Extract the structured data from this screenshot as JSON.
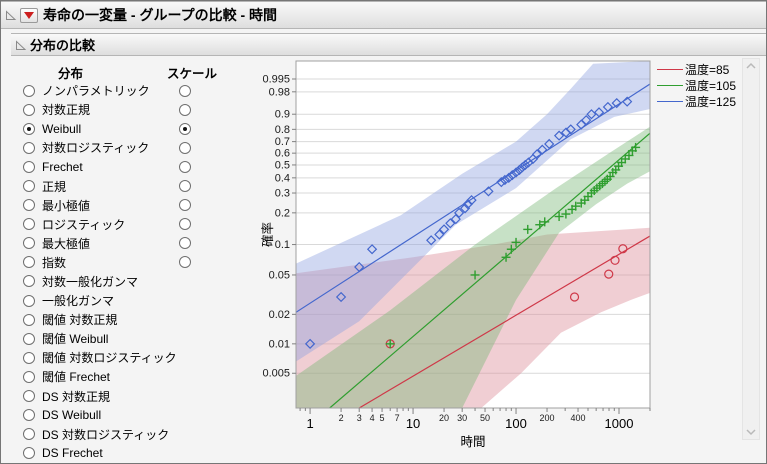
{
  "window": {
    "title": "寿命の一変量 - グループの比較 - 時間",
    "section_title": "分布の比較"
  },
  "panel": {
    "dist_header": "分布",
    "scale_header": "スケール",
    "items": [
      {
        "label": "ノンパラメトリック",
        "selected": false,
        "has_scale": true,
        "scale_selected": false
      },
      {
        "label": "対数正規",
        "selected": false,
        "has_scale": true,
        "scale_selected": false
      },
      {
        "label": "Weibull",
        "selected": true,
        "has_scale": true,
        "scale_selected": true
      },
      {
        "label": "対数ロジスティック",
        "selected": false,
        "has_scale": true,
        "scale_selected": false
      },
      {
        "label": "Frechet",
        "selected": false,
        "has_scale": true,
        "scale_selected": false
      },
      {
        "label": "正規",
        "selected": false,
        "has_scale": true,
        "scale_selected": false
      },
      {
        "label": "最小極値",
        "selected": false,
        "has_scale": true,
        "scale_selected": false
      },
      {
        "label": "ロジスティック",
        "selected": false,
        "has_scale": true,
        "scale_selected": false
      },
      {
        "label": "最大極値",
        "selected": false,
        "has_scale": true,
        "scale_selected": false
      },
      {
        "label": "指数",
        "selected": false,
        "has_scale": true,
        "scale_selected": false
      },
      {
        "label": "対数一般化ガンマ",
        "selected": false,
        "has_scale": false,
        "scale_selected": false
      },
      {
        "label": "一般化ガンマ",
        "selected": false,
        "has_scale": false,
        "scale_selected": false
      },
      {
        "label": "閾値 対数正規",
        "selected": false,
        "has_scale": false,
        "scale_selected": false
      },
      {
        "label": "閾値 Weibull",
        "selected": false,
        "has_scale": false,
        "scale_selected": false
      },
      {
        "label": "閾値 対数ロジスティック",
        "selected": false,
        "has_scale": false,
        "scale_selected": false
      },
      {
        "label": "閾値 Frechet",
        "selected": false,
        "has_scale": false,
        "scale_selected": false
      },
      {
        "label": "DS 対数正規",
        "selected": false,
        "has_scale": false,
        "scale_selected": false
      },
      {
        "label": "DS Weibull",
        "selected": false,
        "has_scale": false,
        "scale_selected": false
      },
      {
        "label": "DS 対数ロジスティック",
        "selected": false,
        "has_scale": false,
        "scale_selected": false
      },
      {
        "label": "DS Frechet",
        "selected": false,
        "has_scale": false,
        "scale_selected": false
      }
    ]
  },
  "chart_data": {
    "type": "scatter",
    "grid_color": "#d9d9d9",
    "band_opacity": 0.42,
    "x_axis": {
      "label": "時間",
      "scale": "log",
      "min": 0.73,
      "max": 2000,
      "major_ticks": [
        1,
        10,
        100,
        1000
      ],
      "minor_labeled": [
        2,
        3,
        4,
        5,
        7,
        20,
        30,
        50,
        200,
        400
      ],
      "minor_ticks": [
        0.8,
        0.9,
        6,
        8,
        9,
        40,
        60,
        70,
        80,
        90,
        300,
        500,
        600,
        700,
        800,
        900,
        2000
      ]
    },
    "y_axis": {
      "label": "確率",
      "scale": "weibull-probability",
      "ticks": [
        0.995,
        0.98,
        0.9,
        0.8,
        0.7,
        0.6,
        0.5,
        0.4,
        0.3,
        0.2,
        0.1,
        0.05,
        0.02,
        0.01,
        0.005
      ],
      "max_p": 0.9997,
      "min_p": 0.0022
    },
    "series": [
      {
        "name": "温度=85",
        "color": "#cf3848",
        "fill": "#dc8b97",
        "marker": "circle",
        "points": [
          [
            6,
            0.01
          ],
          [
            370,
            0.03
          ],
          [
            795,
            0.051
          ],
          [
            915,
            0.07
          ],
          [
            1090,
            0.091
          ]
        ],
        "line": [
          [
            3,
            0.0022
          ],
          [
            2000,
            0.121
          ]
        ],
        "band": [
          [
            0.73,
            0.052
          ],
          [
            10,
            0.075
          ],
          [
            60,
            0.1
          ],
          [
            200,
            0.125
          ],
          [
            2000,
            0.145
          ],
          [
            2000,
            0.033
          ],
          [
            1300,
            0.028
          ],
          [
            670,
            0.021
          ],
          [
            273,
            0.013
          ],
          [
            112,
            0.005
          ],
          [
            46,
            0.0022
          ],
          [
            0.73,
            0.0022
          ]
        ]
      },
      {
        "name": "温度=105",
        "color": "#2f9e2f",
        "fill": "#79b877",
        "marker": "plus",
        "points": [
          [
            6,
            0.01
          ],
          [
            40,
            0.05
          ],
          [
            80,
            0.075
          ],
          [
            90,
            0.09
          ],
          [
            100,
            0.105
          ],
          [
            130,
            0.14
          ],
          [
            170,
            0.155
          ],
          [
            190,
            0.165
          ],
          [
            262,
            0.185
          ],
          [
            305,
            0.195
          ],
          [
            350,
            0.215
          ],
          [
            380,
            0.23
          ],
          [
            430,
            0.245
          ],
          [
            465,
            0.26
          ],
          [
            500,
            0.28
          ],
          [
            540,
            0.3
          ],
          [
            575,
            0.315
          ],
          [
            610,
            0.33
          ],
          [
            650,
            0.345
          ],
          [
            690,
            0.36
          ],
          [
            730,
            0.375
          ],
          [
            770,
            0.39
          ],
          [
            820,
            0.41
          ],
          [
            870,
            0.44
          ],
          [
            930,
            0.46
          ],
          [
            990,
            0.49
          ],
          [
            1060,
            0.52
          ],
          [
            1150,
            0.55
          ],
          [
            1250,
            0.58
          ],
          [
            1350,
            0.62
          ],
          [
            1450,
            0.65
          ]
        ],
        "line": [
          [
            1.55,
            0.0022
          ],
          [
            2000,
            0.77
          ]
        ],
        "band": [
          [
            0.73,
            0.0047
          ],
          [
            6,
            0.022
          ],
          [
            40,
            0.1
          ],
          [
            245,
            0.33
          ],
          [
            800,
            0.6
          ],
          [
            2000,
            0.82
          ],
          [
            2000,
            0.45
          ],
          [
            1200,
            0.36
          ],
          [
            600,
            0.24
          ],
          [
            262,
            0.13
          ],
          [
            100,
            0.028
          ],
          [
            30,
            0.0022
          ],
          [
            0.73,
            0.0022
          ]
        ]
      },
      {
        "name": "温度=125",
        "color": "#4467cd",
        "fill": "#8fa3e0",
        "marker": "diamond",
        "points": [
          [
            1,
            0.01
          ],
          [
            2,
            0.03
          ],
          [
            3,
            0.06
          ],
          [
            4,
            0.09
          ],
          [
            15,
            0.11
          ],
          [
            18,
            0.125
          ],
          [
            20,
            0.14
          ],
          [
            23,
            0.16
          ],
          [
            26,
            0.175
          ],
          [
            28,
            0.2
          ],
          [
            32,
            0.22
          ],
          [
            34,
            0.24
          ],
          [
            37,
            0.26
          ],
          [
            54,
            0.31
          ],
          [
            72,
            0.37
          ],
          [
            78,
            0.385
          ],
          [
            85,
            0.4
          ],
          [
            92,
            0.42
          ],
          [
            100,
            0.44
          ],
          [
            108,
            0.46
          ],
          [
            115,
            0.48
          ],
          [
            123,
            0.5
          ],
          [
            132,
            0.52
          ],
          [
            146,
            0.55
          ],
          [
            160,
            0.59
          ],
          [
            180,
            0.63
          ],
          [
            210,
            0.68
          ],
          [
            262,
            0.75
          ],
          [
            306,
            0.775
          ],
          [
            340,
            0.8
          ],
          [
            430,
            0.835
          ],
          [
            480,
            0.865
          ],
          [
            540,
            0.9
          ],
          [
            640,
            0.91
          ],
          [
            780,
            0.935
          ],
          [
            950,
            0.95
          ],
          [
            1200,
            0.955
          ]
        ],
        "line": [
          [
            0.73,
            0.021
          ],
          [
            2000,
            0.991
          ]
        ],
        "band": [
          [
            0.73,
            0.065
          ],
          [
            7.6,
            0.19
          ],
          [
            30,
            0.43
          ],
          [
            100,
            0.7
          ],
          [
            200,
            0.9
          ],
          [
            340,
            0.985
          ],
          [
            560,
            0.9995
          ],
          [
            2000,
            0.9997
          ],
          [
            2000,
            0.926
          ],
          [
            900,
            0.885
          ],
          [
            340,
            0.72
          ],
          [
            100,
            0.33
          ],
          [
            26,
            0.155
          ],
          [
            15,
            0.09
          ],
          [
            3,
            0.017
          ],
          [
            0.73,
            0.0066
          ]
        ]
      }
    ]
  }
}
